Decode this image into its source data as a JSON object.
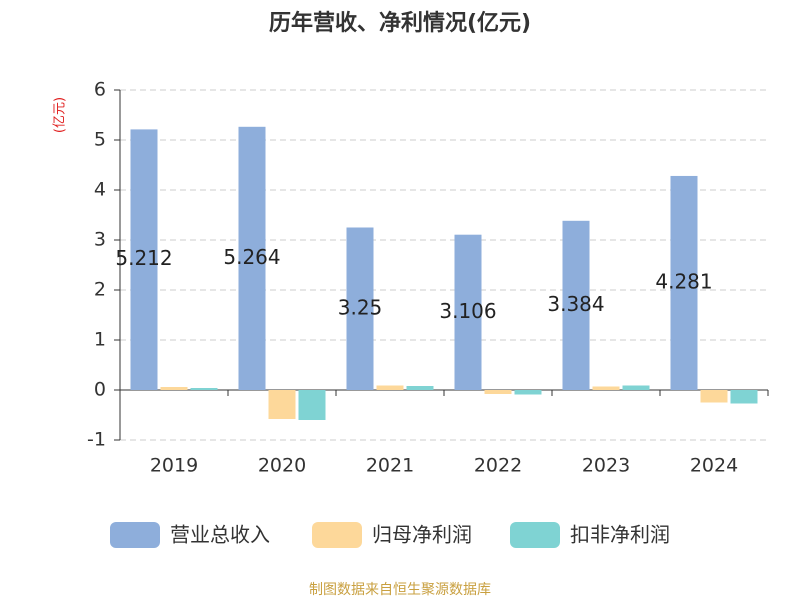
{
  "chart_data": {
    "type": "bar",
    "title": "历年营收、净利情况(亿元)",
    "y_label": "(亿元)",
    "categories": [
      "2019",
      "2020",
      "2021",
      "2022",
      "2023",
      "2024"
    ],
    "series": [
      {
        "name": "营业总收入",
        "color": "#8eaedb",
        "values": [
          5.212,
          5.264,
          3.25,
          3.106,
          3.384,
          4.281
        ],
        "show_labels": true
      },
      {
        "name": "归母净利润",
        "color": "#fdd89a",
        "values": [
          0.06,
          -0.58,
          0.09,
          -0.08,
          0.07,
          -0.25
        ]
      },
      {
        "name": "扣非净利润",
        "color": "#7fd3d3",
        "values": [
          0.04,
          -0.6,
          0.08,
          -0.09,
          0.09,
          -0.27
        ]
      }
    ],
    "ylim": [
      -1,
      6
    ],
    "yticks": [
      -1,
      0,
      1,
      2,
      3,
      4,
      5,
      6
    ],
    "grid": true,
    "legend": "bottom",
    "source": "制图数据来自恒生聚源数据库"
  }
}
